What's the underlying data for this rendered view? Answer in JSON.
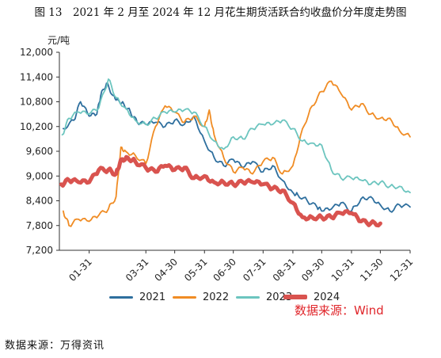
{
  "title": "图 13　2021 年 2 月至 2024 年 12 月花生期货活跃合约收盘价分年度走势图",
  "wind_note": "数据来源：Wind",
  "source": "数据来源：万得资讯",
  "colors": {
    "2021": "#2e6f9e",
    "2022": "#f08c24",
    "2023": "#6cc5bf",
    "2024": "#d9534f"
  },
  "chart_data": {
    "type": "line",
    "unit_label": "元/吨",
    "ylim": [
      7200,
      12000
    ],
    "y_ticks": [
      "7,200",
      "7,800",
      "8,400",
      "9,000",
      "9,600",
      "10,200",
      "10,800",
      "11,400",
      "12,000"
    ],
    "y_tick_values": [
      7200,
      7800,
      8400,
      9000,
      9600,
      10200,
      10800,
      11400,
      12000
    ],
    "x_ticks": [
      "01-31",
      "03-31",
      "04-30",
      "05-31",
      "06-30",
      "07-31",
      "08-31",
      "09-30",
      "10-31",
      "11-30",
      "12-31"
    ],
    "x_tick_days": [
      31,
      90,
      120,
      151,
      181,
      212,
      243,
      273,
      304,
      334,
      365
    ],
    "x_range_days": [
      0,
      365
    ],
    "grid": false,
    "legend_position": "bottom",
    "series": [
      {
        "name": "2021",
        "x": [
          "01-04",
          "01-15",
          "01-22",
          "01-31",
          "02-08",
          "02-12",
          "02-18",
          "02-25",
          "03-02",
          "03-08",
          "03-15",
          "03-22",
          "03-31",
          "04-10",
          "04-20",
          "04-30",
          "05-10",
          "05-20",
          "05-31",
          "06-10",
          "06-20",
          "06-30",
          "07-10",
          "07-20",
          "07-31",
          "08-10",
          "08-20",
          "08-31",
          "09-05",
          "09-15",
          "09-25",
          "09-30",
          "10-10",
          "10-20",
          "10-31",
          "11-10",
          "11-20",
          "11-30",
          "12-10",
          "12-20",
          "12-31"
        ],
        "values": [
          10150,
          10350,
          10800,
          10450,
          10500,
          10950,
          11250,
          10950,
          10850,
          10750,
          10550,
          10300,
          10250,
          10300,
          10200,
          10350,
          10250,
          10450,
          9850,
          9450,
          9250,
          9400,
          9200,
          9350,
          9100,
          9250,
          8900,
          8600,
          8550,
          8400,
          8250,
          8150,
          8200,
          8350,
          8150,
          8450,
          8500,
          8300,
          8150,
          8300,
          8250
        ]
      },
      {
        "name": "2022",
        "x": [
          "01-04",
          "01-10",
          "01-20",
          "01-31",
          "02-10",
          "02-20",
          "02-28",
          "03-05",
          "03-10",
          "03-20",
          "03-31",
          "04-10",
          "04-20",
          "04-30",
          "05-10",
          "05-20",
          "05-31",
          "06-05",
          "06-10",
          "06-20",
          "06-30",
          "07-10",
          "07-20",
          "07-31",
          "08-10",
          "08-20",
          "08-31",
          "09-10",
          "09-20",
          "09-30",
          "10-10",
          "10-20",
          "10-31",
          "11-10",
          "11-20",
          "11-30",
          "12-10",
          "12-20",
          "12-31"
        ],
        "values": [
          8150,
          7800,
          7950,
          7900,
          8050,
          8200,
          8500,
          9700,
          9600,
          9500,
          9300,
          10200,
          10700,
          10550,
          10300,
          10450,
          10200,
          10600,
          10000,
          9450,
          9100,
          9200,
          9050,
          9350,
          9450,
          9050,
          9250,
          10150,
          10700,
          11050,
          11300,
          11000,
          10600,
          10750,
          10500,
          10400,
          10400,
          10100,
          9950
        ]
      },
      {
        "name": "2023",
        "x": [
          "01-03",
          "01-10",
          "01-20",
          "01-31",
          "02-10",
          "02-20",
          "02-28",
          "03-10",
          "03-20",
          "03-31",
          "04-10",
          "04-20",
          "04-30",
          "05-10",
          "05-20",
          "05-31",
          "06-10",
          "06-20",
          "06-30",
          "07-10",
          "07-20",
          "07-31",
          "08-10",
          "08-20",
          "08-31",
          "09-10",
          "09-20",
          "09-30",
          "10-10",
          "10-20",
          "10-31",
          "11-10",
          "11-20",
          "11-30",
          "12-10",
          "12-20",
          "12-31"
        ],
        "values": [
          10000,
          10400,
          10550,
          10500,
          10650,
          11350,
          10900,
          10650,
          10350,
          10250,
          10400,
          10550,
          10550,
          10600,
          10550,
          10200,
          9850,
          9650,
          9950,
          9900,
          10150,
          10250,
          10250,
          10350,
          10150,
          9850,
          9800,
          9750,
          9150,
          8950,
          8950,
          8900,
          8800,
          8850,
          8750,
          8750,
          8600
        ]
      },
      {
        "name": "2024",
        "x": [
          "01-02",
          "01-10",
          "01-20",
          "01-31",
          "02-10",
          "02-20",
          "02-28",
          "03-05",
          "03-12",
          "03-20",
          "03-31",
          "04-10",
          "04-20",
          "04-30",
          "05-10",
          "05-20",
          "05-31",
          "06-10",
          "06-20",
          "06-30",
          "07-10",
          "07-20",
          "07-31",
          "08-10",
          "08-20",
          "08-31",
          "09-10",
          "09-20",
          "09-30",
          "10-10",
          "10-20",
          "10-31",
          "11-10",
          "11-20",
          "11-30"
        ],
        "values": [
          8800,
          8900,
          8850,
          8850,
          9150,
          9150,
          9050,
          9400,
          9450,
          9350,
          9200,
          9100,
          9250,
          9150,
          9200,
          8950,
          9000,
          8850,
          8850,
          8800,
          8850,
          8850,
          8800,
          8700,
          8650,
          8350,
          8000,
          8000,
          8000,
          8000,
          8100,
          8100,
          7900,
          7850,
          7850
        ]
      }
    ]
  }
}
